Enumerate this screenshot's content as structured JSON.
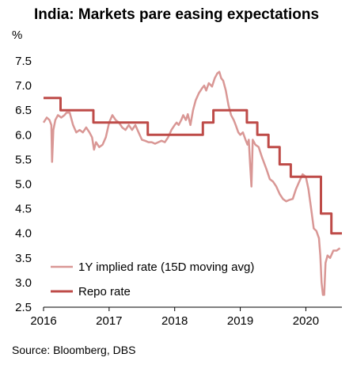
{
  "chart_data": {
    "type": "line",
    "title": "India: Markets pare easing expectations",
    "ylabel": "%",
    "source": "Source: Bloomberg, DBS",
    "ylim": [
      2.5,
      7.5
    ],
    "xlim": [
      2016,
      2020.55
    ],
    "yticks": [
      "2.5",
      "3.0",
      "3.5",
      "4.0",
      "4.5",
      "5.0",
      "5.5",
      "6.0",
      "6.5",
      "7.0",
      "7.5"
    ],
    "xticks": [
      "2016",
      "2017",
      "2018",
      "2019",
      "2020"
    ],
    "legend_position": "bottom-left",
    "grid": false,
    "series": [
      {
        "name": "1Y implied rate (15D moving avg)",
        "color": "#d99795",
        "step": false,
        "points": [
          [
            2016.0,
            6.25
          ],
          [
            2016.05,
            6.35
          ],
          [
            2016.09,
            6.3
          ],
          [
            2016.12,
            6.2
          ],
          [
            2016.13,
            5.45
          ],
          [
            2016.15,
            6.1
          ],
          [
            2016.18,
            6.3
          ],
          [
            2016.22,
            6.4
          ],
          [
            2016.27,
            6.35
          ],
          [
            2016.32,
            6.4
          ],
          [
            2016.35,
            6.45
          ],
          [
            2016.4,
            6.45
          ],
          [
            2016.45,
            6.2
          ],
          [
            2016.5,
            6.05
          ],
          [
            2016.55,
            6.1
          ],
          [
            2016.6,
            6.05
          ],
          [
            2016.65,
            6.15
          ],
          [
            2016.7,
            6.05
          ],
          [
            2016.74,
            5.95
          ],
          [
            2016.77,
            5.7
          ],
          [
            2016.8,
            5.85
          ],
          [
            2016.85,
            5.75
          ],
          [
            2016.9,
            5.8
          ],
          [
            2016.95,
            5.95
          ],
          [
            2017.0,
            6.25
          ],
          [
            2017.05,
            6.4
          ],
          [
            2017.1,
            6.3
          ],
          [
            2017.15,
            6.25
          ],
          [
            2017.2,
            6.15
          ],
          [
            2017.25,
            6.1
          ],
          [
            2017.3,
            6.2
          ],
          [
            2017.35,
            6.1
          ],
          [
            2017.4,
            6.2
          ],
          [
            2017.45,
            6.05
          ],
          [
            2017.5,
            5.9
          ],
          [
            2017.55,
            5.88
          ],
          [
            2017.6,
            5.85
          ],
          [
            2017.65,
            5.85
          ],
          [
            2017.7,
            5.82
          ],
          [
            2017.75,
            5.85
          ],
          [
            2017.8,
            5.88
          ],
          [
            2017.85,
            5.85
          ],
          [
            2017.9,
            5.95
          ],
          [
            2017.95,
            6.1
          ],
          [
            2018.0,
            6.2
          ],
          [
            2018.03,
            6.25
          ],
          [
            2018.06,
            6.2
          ],
          [
            2018.1,
            6.3
          ],
          [
            2018.13,
            6.4
          ],
          [
            2018.17,
            6.3
          ],
          [
            2018.2,
            6.42
          ],
          [
            2018.24,
            6.2
          ],
          [
            2018.28,
            6.5
          ],
          [
            2018.32,
            6.7
          ],
          [
            2018.37,
            6.85
          ],
          [
            2018.42,
            6.95
          ],
          [
            2018.45,
            7.0
          ],
          [
            2018.48,
            6.9
          ],
          [
            2018.52,
            7.05
          ],
          [
            2018.57,
            6.98
          ],
          [
            2018.61,
            7.15
          ],
          [
            2018.65,
            7.25
          ],
          [
            2018.68,
            7.28
          ],
          [
            2018.71,
            7.15
          ],
          [
            2018.74,
            7.1
          ],
          [
            2018.78,
            6.9
          ],
          [
            2018.82,
            6.6
          ],
          [
            2018.86,
            6.4
          ],
          [
            2018.9,
            6.3
          ],
          [
            2018.93,
            6.2
          ],
          [
            2018.97,
            6.05
          ],
          [
            2019.0,
            6.0
          ],
          [
            2019.04,
            6.05
          ],
          [
            2019.08,
            5.9
          ],
          [
            2019.11,
            5.8
          ],
          [
            2019.13,
            5.9
          ],
          [
            2019.15,
            5.4
          ],
          [
            2019.17,
            4.95
          ],
          [
            2019.19,
            5.9
          ],
          [
            2019.23,
            5.8
          ],
          [
            2019.28,
            5.75
          ],
          [
            2019.33,
            5.55
          ],
          [
            2019.4,
            5.3
          ],
          [
            2019.45,
            5.1
          ],
          [
            2019.5,
            5.05
          ],
          [
            2019.55,
            4.95
          ],
          [
            2019.6,
            4.8
          ],
          [
            2019.65,
            4.7
          ],
          [
            2019.7,
            4.65
          ],
          [
            2019.75,
            4.68
          ],
          [
            2019.8,
            4.7
          ],
          [
            2019.85,
            4.9
          ],
          [
            2019.9,
            5.05
          ],
          [
            2019.95,
            5.2
          ],
          [
            2020.0,
            5.15
          ],
          [
            2020.04,
            4.9
          ],
          [
            2020.08,
            4.5
          ],
          [
            2020.12,
            4.1
          ],
          [
            2020.16,
            4.05
          ],
          [
            2020.2,
            3.9
          ],
          [
            2020.22,
            3.55
          ],
          [
            2020.24,
            3.0
          ],
          [
            2020.26,
            2.75
          ],
          [
            2020.28,
            2.75
          ],
          [
            2020.3,
            3.4
          ],
          [
            2020.33,
            3.55
          ],
          [
            2020.37,
            3.5
          ],
          [
            2020.42,
            3.65
          ],
          [
            2020.47,
            3.65
          ],
          [
            2020.52,
            3.7
          ]
        ]
      },
      {
        "name": "Repo rate",
        "color": "#be4b48",
        "step": true,
        "points": [
          [
            2016.0,
            6.75
          ],
          [
            2016.26,
            6.75
          ],
          [
            2016.26,
            6.5
          ],
          [
            2016.76,
            6.5
          ],
          [
            2016.76,
            6.25
          ],
          [
            2017.59,
            6.25
          ],
          [
            2017.59,
            6.0
          ],
          [
            2018.43,
            6.0
          ],
          [
            2018.43,
            6.25
          ],
          [
            2018.59,
            6.25
          ],
          [
            2018.59,
            6.5
          ],
          [
            2019.1,
            6.5
          ],
          [
            2019.1,
            6.25
          ],
          [
            2019.26,
            6.25
          ],
          [
            2019.26,
            6.0
          ],
          [
            2019.43,
            6.0
          ],
          [
            2019.43,
            5.75
          ],
          [
            2019.6,
            5.75
          ],
          [
            2019.6,
            5.4
          ],
          [
            2019.77,
            5.4
          ],
          [
            2019.77,
            5.15
          ],
          [
            2020.23,
            5.15
          ],
          [
            2020.23,
            4.4
          ],
          [
            2020.39,
            4.4
          ],
          [
            2020.39,
            4.0
          ],
          [
            2020.55,
            4.0
          ]
        ]
      }
    ]
  }
}
